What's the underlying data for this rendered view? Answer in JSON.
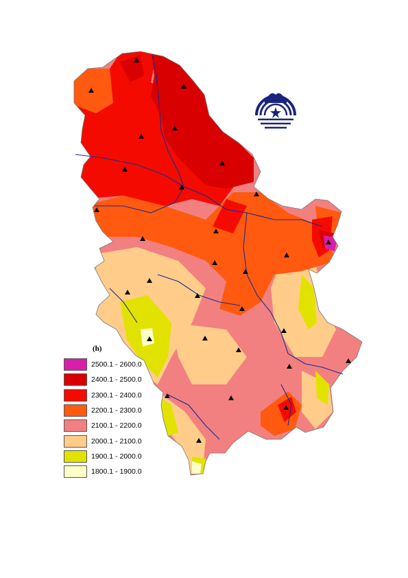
{
  "legend": {
    "title": "(h)",
    "items": [
      {
        "label": "2500.1 - 2600.0",
        "color": "#d91eaa"
      },
      {
        "label": "2400.1 - 2500.0",
        "color": "#d80000"
      },
      {
        "label": "2300.1 - 2400.0",
        "color": "#f50a00"
      },
      {
        "label": "2200.1 - 2300.0",
        "color": "#ff5a0f"
      },
      {
        "label": "2100.1 - 2200.0",
        "color": "#f28080"
      },
      {
        "label": "2000.1 - 2100.0",
        "color": "#ffcc8a"
      },
      {
        "label": "1900.1 - 2000.0",
        "color": "#e2e200"
      },
      {
        "label": "1800.1 - 1900.0",
        "color": "#ffffc8"
      }
    ]
  },
  "map": {
    "river_color": "#1a2a8c",
    "station_marker": "triangle-icon",
    "logo_icon": "institution-emblem-icon",
    "logo_color": "#1a237e"
  }
}
